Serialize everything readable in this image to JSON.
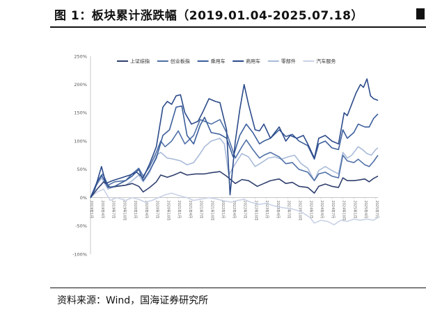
{
  "figure": {
    "title": "图 1：板块累计涨跌幅（2019.01.04-2025.07.18）",
    "source": "资料来源：Wind，国海证券研究所"
  },
  "chart_data": {
    "type": "line",
    "title": "图 1：板块累计涨跌幅（2019.01.04-2025.07.18）",
    "xlabel": "",
    "ylabel": "",
    "ylim": [
      -100,
      250
    ],
    "yticks": [
      -100,
      -50,
      0,
      50,
      100,
      150,
      200,
      250
    ],
    "ytick_labels": [
      "-100%",
      "-50%",
      "0%",
      "50%",
      "100%",
      "150%",
      "200%",
      "250%"
    ],
    "x_range": [
      2019.0,
      2025.55
    ],
    "xtick_labels": [
      "2019年1月",
      "2019年4月",
      "2019年7月",
      "2019年10月",
      "2020年1月",
      "2020年4月",
      "2020年7月",
      "2020年10月",
      "2021年1月",
      "2021年4月",
      "2021年7月",
      "2021年10月",
      "2022年1月",
      "2022年4月",
      "2022年7月",
      "2022年10月",
      "2023年1月",
      "2023年4月",
      "2023年7月",
      "2023年10月",
      "2024年1月",
      "2024年4月",
      "2024年7月",
      "2024年10月",
      "2025年1月",
      "2025年4月",
      "2025年7月"
    ],
    "legend_position": "top",
    "grid": false,
    "series": [
      {
        "name": "上证综指",
        "color": "#2f3f6e",
        "width": 1.6,
        "points": [
          [
            2019.0,
            0
          ],
          [
            2019.15,
            15
          ],
          [
            2019.3,
            28
          ],
          [
            2019.45,
            18
          ],
          [
            2019.6,
            20
          ],
          [
            2019.8,
            22
          ],
          [
            2019.95,
            25
          ],
          [
            2020.1,
            20
          ],
          [
            2020.2,
            10
          ],
          [
            2020.35,
            18
          ],
          [
            2020.5,
            28
          ],
          [
            2020.6,
            40
          ],
          [
            2020.75,
            36
          ],
          [
            2020.9,
            40
          ],
          [
            2021.05,
            45
          ],
          [
            2021.2,
            40
          ],
          [
            2021.4,
            42
          ],
          [
            2021.6,
            42
          ],
          [
            2021.75,
            44
          ],
          [
            2021.95,
            46
          ],
          [
            2022.1,
            38
          ],
          [
            2022.3,
            25
          ],
          [
            2022.45,
            32
          ],
          [
            2022.6,
            30
          ],
          [
            2022.8,
            20
          ],
          [
            2022.95,
            25
          ],
          [
            2023.1,
            30
          ],
          [
            2023.3,
            33
          ],
          [
            2023.45,
            25
          ],
          [
            2023.6,
            27
          ],
          [
            2023.75,
            20
          ],
          [
            2023.95,
            18
          ],
          [
            2024.1,
            8
          ],
          [
            2024.2,
            20
          ],
          [
            2024.35,
            24
          ],
          [
            2024.5,
            20
          ],
          [
            2024.65,
            18
          ],
          [
            2024.75,
            35
          ],
          [
            2024.85,
            30
          ],
          [
            2025.0,
            30
          ],
          [
            2025.1,
            31
          ],
          [
            2025.25,
            33
          ],
          [
            2025.35,
            28
          ],
          [
            2025.45,
            34
          ],
          [
            2025.55,
            38
          ]
        ]
      },
      {
        "name": "创业板指",
        "color": "#4e6fa6",
        "width": 1.6,
        "points": [
          [
            2019.0,
            0
          ],
          [
            2019.15,
            25
          ],
          [
            2019.28,
            42
          ],
          [
            2019.4,
            22
          ],
          [
            2019.55,
            28
          ],
          [
            2019.8,
            30
          ],
          [
            2019.95,
            42
          ],
          [
            2020.1,
            52
          ],
          [
            2020.2,
            38
          ],
          [
            2020.35,
            55
          ],
          [
            2020.5,
            80
          ],
          [
            2020.6,
            100
          ],
          [
            2020.7,
            90
          ],
          [
            2020.85,
            100
          ],
          [
            2021.0,
            118
          ],
          [
            2021.15,
            95
          ],
          [
            2021.35,
            110
          ],
          [
            2021.5,
            138
          ],
          [
            2021.6,
            135
          ],
          [
            2021.75,
            130
          ],
          [
            2021.95,
            138
          ],
          [
            2022.1,
            115
          ],
          [
            2022.3,
            70
          ],
          [
            2022.45,
            90
          ],
          [
            2022.55,
            102
          ],
          [
            2022.7,
            85
          ],
          [
            2022.85,
            70
          ],
          [
            2022.95,
            75
          ],
          [
            2023.1,
            80
          ],
          [
            2023.3,
            72
          ],
          [
            2023.45,
            60
          ],
          [
            2023.6,
            62
          ],
          [
            2023.75,
            50
          ],
          [
            2023.95,
            45
          ],
          [
            2024.1,
            30
          ],
          [
            2024.2,
            42
          ],
          [
            2024.35,
            45
          ],
          [
            2024.5,
            38
          ],
          [
            2024.65,
            35
          ],
          [
            2024.75,
            75
          ],
          [
            2024.85,
            65
          ],
          [
            2025.0,
            62
          ],
          [
            2025.1,
            68
          ],
          [
            2025.25,
            58
          ],
          [
            2025.35,
            55
          ],
          [
            2025.45,
            64
          ],
          [
            2025.55,
            75
          ]
        ]
      },
      {
        "name": "乘用车",
        "color": "#3a5e9c",
        "width": 1.6,
        "points": [
          [
            2019.0,
            0
          ],
          [
            2019.15,
            28
          ],
          [
            2019.25,
            40
          ],
          [
            2019.4,
            18
          ],
          [
            2019.55,
            20
          ],
          [
            2019.8,
            30
          ],
          [
            2019.95,
            38
          ],
          [
            2020.1,
            50
          ],
          [
            2020.2,
            30
          ],
          [
            2020.35,
            48
          ],
          [
            2020.5,
            70
          ],
          [
            2020.65,
            110
          ],
          [
            2020.8,
            120
          ],
          [
            2020.95,
            160
          ],
          [
            2021.08,
            162
          ],
          [
            2021.2,
            110
          ],
          [
            2021.35,
            95
          ],
          [
            2021.5,
            128
          ],
          [
            2021.6,
            142
          ],
          [
            2021.75,
            115
          ],
          [
            2021.95,
            112
          ],
          [
            2022.1,
            105
          ],
          [
            2022.25,
            72
          ],
          [
            2022.4,
            110
          ],
          [
            2022.55,
            130
          ],
          [
            2022.7,
            115
          ],
          [
            2022.85,
            95
          ],
          [
            2022.95,
            100
          ],
          [
            2023.1,
            105
          ],
          [
            2023.3,
            120
          ],
          [
            2023.45,
            108
          ],
          [
            2023.6,
            112
          ],
          [
            2023.75,
            100
          ],
          [
            2023.95,
            92
          ],
          [
            2024.1,
            68
          ],
          [
            2024.2,
            95
          ],
          [
            2024.35,
            100
          ],
          [
            2024.5,
            88
          ],
          [
            2024.65,
            85
          ],
          [
            2024.75,
            120
          ],
          [
            2024.85,
            105
          ],
          [
            2025.0,
            115
          ],
          [
            2025.1,
            130
          ],
          [
            2025.25,
            125
          ],
          [
            2025.35,
            125
          ],
          [
            2025.45,
            140
          ],
          [
            2025.55,
            148
          ]
        ]
      },
      {
        "name": "商用车",
        "color": "#2b4a8a",
        "width": 1.6,
        "points": [
          [
            2019.0,
            0
          ],
          [
            2019.1,
            15
          ],
          [
            2019.25,
            55
          ],
          [
            2019.35,
            25
          ],
          [
            2019.5,
            30
          ],
          [
            2019.7,
            35
          ],
          [
            2019.9,
            40
          ],
          [
            2020.05,
            45
          ],
          [
            2020.2,
            35
          ],
          [
            2020.35,
            60
          ],
          [
            2020.5,
            90
          ],
          [
            2020.65,
            160
          ],
          [
            2020.75,
            170
          ],
          [
            2020.85,
            165
          ],
          [
            2020.95,
            180
          ],
          [
            2021.05,
            182
          ],
          [
            2021.15,
            150
          ],
          [
            2021.3,
            130
          ],
          [
            2021.45,
            135
          ],
          [
            2021.55,
            150
          ],
          [
            2021.7,
            175
          ],
          [
            2021.85,
            170
          ],
          [
            2021.95,
            168
          ],
          [
            2022.1,
            120
          ],
          [
            2022.18,
            5
          ],
          [
            2022.3,
            100
          ],
          [
            2022.4,
            155
          ],
          [
            2022.5,
            200
          ],
          [
            2022.6,
            165
          ],
          [
            2022.75,
            120
          ],
          [
            2022.85,
            118
          ],
          [
            2022.95,
            130
          ],
          [
            2023.1,
            105
          ],
          [
            2023.3,
            125
          ],
          [
            2023.45,
            100
          ],
          [
            2023.55,
            110
          ],
          [
            2023.7,
            105
          ],
          [
            2023.85,
            110
          ],
          [
            2023.95,
            95
          ],
          [
            2024.1,
            70
          ],
          [
            2024.2,
            105
          ],
          [
            2024.35,
            110
          ],
          [
            2024.5,
            100
          ],
          [
            2024.65,
            95
          ],
          [
            2024.78,
            150
          ],
          [
            2024.85,
            145
          ],
          [
            2024.95,
            165
          ],
          [
            2025.05,
            185
          ],
          [
            2025.15,
            200
          ],
          [
            2025.22,
            195
          ],
          [
            2025.3,
            210
          ],
          [
            2025.38,
            180
          ],
          [
            2025.45,
            175
          ],
          [
            2025.55,
            172
          ]
        ]
      },
      {
        "name": "零部件",
        "color": "#a9bbd9",
        "width": 1.6,
        "points": [
          [
            2019.0,
            0
          ],
          [
            2019.12,
            20
          ],
          [
            2019.25,
            35
          ],
          [
            2019.4,
            15
          ],
          [
            2019.55,
            20
          ],
          [
            2019.8,
            22
          ],
          [
            2019.95,
            30
          ],
          [
            2020.1,
            40
          ],
          [
            2020.2,
            28
          ],
          [
            2020.35,
            45
          ],
          [
            2020.5,
            75
          ],
          [
            2020.6,
            80
          ],
          [
            2020.75,
            70
          ],
          [
            2020.9,
            68
          ],
          [
            2021.05,
            65
          ],
          [
            2021.2,
            58
          ],
          [
            2021.35,
            62
          ],
          [
            2021.5,
            78
          ],
          [
            2021.6,
            90
          ],
          [
            2021.75,
            100
          ],
          [
            2021.95,
            105
          ],
          [
            2022.05,
            95
          ],
          [
            2022.15,
            40
          ],
          [
            2022.3,
            60
          ],
          [
            2022.45,
            78
          ],
          [
            2022.6,
            72
          ],
          [
            2022.75,
            55
          ],
          [
            2022.9,
            62
          ],
          [
            2023.05,
            70
          ],
          [
            2023.2,
            72
          ],
          [
            2023.35,
            68
          ],
          [
            2023.5,
            72
          ],
          [
            2023.65,
            75
          ],
          [
            2023.8,
            60
          ],
          [
            2023.95,
            52
          ],
          [
            2024.1,
            30
          ],
          [
            2024.2,
            48
          ],
          [
            2024.35,
            55
          ],
          [
            2024.5,
            48
          ],
          [
            2024.65,
            42
          ],
          [
            2024.75,
            80
          ],
          [
            2024.85,
            70
          ],
          [
            2024.95,
            75
          ],
          [
            2025.1,
            90
          ],
          [
            2025.2,
            85
          ],
          [
            2025.3,
            78
          ],
          [
            2025.4,
            75
          ],
          [
            2025.5,
            85
          ],
          [
            2025.55,
            88
          ]
        ]
      },
      {
        "name": "汽车服务",
        "color": "#c9d2e6",
        "width": 1.6,
        "points": [
          [
            2019.0,
            0
          ],
          [
            2019.15,
            10
          ],
          [
            2019.3,
            15
          ],
          [
            2019.45,
            -5
          ],
          [
            2019.6,
            0
          ],
          [
            2019.8,
            -5
          ],
          [
            2019.95,
            0
          ],
          [
            2020.1,
            -3
          ],
          [
            2020.25,
            -8
          ],
          [
            2020.4,
            -5
          ],
          [
            2020.55,
            0
          ],
          [
            2020.7,
            5
          ],
          [
            2020.85,
            8
          ],
          [
            2021.0,
            4
          ],
          [
            2021.2,
            0
          ],
          [
            2021.35,
            -5
          ],
          [
            2021.5,
            -3
          ],
          [
            2021.7,
            0
          ],
          [
            2021.85,
            -2
          ],
          [
            2022.0,
            -5
          ],
          [
            2022.2,
            -8
          ],
          [
            2022.35,
            -5
          ],
          [
            2022.5,
            -3
          ],
          [
            2022.65,
            -8
          ],
          [
            2022.85,
            -12
          ],
          [
            2023.0,
            -10
          ],
          [
            2023.2,
            -15
          ],
          [
            2023.4,
            -18
          ],
          [
            2023.6,
            -20
          ],
          [
            2023.8,
            -25
          ],
          [
            2024.0,
            -35
          ],
          [
            2024.1,
            -45
          ],
          [
            2024.25,
            -40
          ],
          [
            2024.4,
            -42
          ],
          [
            2024.55,
            -48
          ],
          [
            2024.7,
            -40
          ],
          [
            2024.85,
            -42
          ],
          [
            2025.0,
            -38
          ],
          [
            2025.15,
            -40
          ],
          [
            2025.3,
            -38
          ],
          [
            2025.45,
            -40
          ],
          [
            2025.55,
            -35
          ]
        ]
      }
    ]
  }
}
